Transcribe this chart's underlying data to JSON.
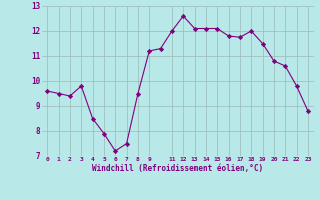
{
  "x": [
    0,
    1,
    2,
    3,
    4,
    5,
    6,
    7,
    8,
    9,
    10,
    11,
    12,
    13,
    14,
    15,
    16,
    17,
    18,
    19,
    20,
    21,
    22,
    23
  ],
  "y": [
    9.6,
    9.5,
    9.4,
    9.8,
    8.5,
    7.9,
    7.2,
    7.5,
    9.5,
    11.2,
    11.3,
    12.0,
    12.6,
    12.1,
    12.1,
    12.1,
    11.8,
    11.75,
    12.0,
    11.5,
    10.8,
    10.6,
    9.8,
    8.8
  ],
  "line_color": "#800080",
  "marker": "D",
  "marker_size": 2.2,
  "bg_color": "#b8e8e8",
  "grid_color": "#9bbaba",
  "xlabel": "Windchill (Refroidissement éolien,°C)",
  "xlim": [
    -0.5,
    23.5
  ],
  "ylim": [
    7,
    13
  ],
  "yticks": [
    7,
    8,
    9,
    10,
    11,
    12,
    13
  ],
  "xticks": [
    0,
    1,
    2,
    3,
    4,
    5,
    6,
    7,
    8,
    9,
    11,
    12,
    13,
    14,
    15,
    16,
    17,
    18,
    19,
    20,
    21,
    22,
    23
  ],
  "xtick_labels": [
    "0",
    "1",
    "2",
    "3",
    "4",
    "5",
    "6",
    "7",
    "8",
    "9",
    "11",
    "12",
    "13",
    "14",
    "15",
    "16",
    "17",
    "18",
    "19",
    "20",
    "21",
    "22",
    "23"
  ]
}
